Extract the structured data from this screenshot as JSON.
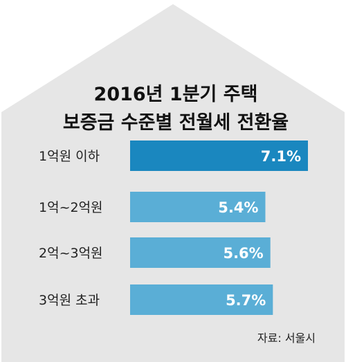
{
  "chart_data": {
    "type": "bar",
    "orientation": "horizontal",
    "title_lines": [
      "2016년 1분기 주택",
      "보증금 수준별 전월세 전환율"
    ],
    "categories": [
      "1억원 이하",
      "1억~2억원",
      "2억~3억원",
      "3억원 초과"
    ],
    "values": [
      7.1,
      5.4,
      5.6,
      5.7
    ],
    "value_labels": [
      "7.1%",
      "5.4%",
      "5.6%",
      "5.7%"
    ],
    "unit": "%",
    "xlim": [
      0,
      7.1
    ],
    "highlight_index": 0,
    "source": "자료: 서울시"
  },
  "colors": {
    "house_fill": "#e6e6e6",
    "highlight_bar": "#1a87bf",
    "bar": "#5aaed6",
    "value_text": "#ffffff"
  }
}
